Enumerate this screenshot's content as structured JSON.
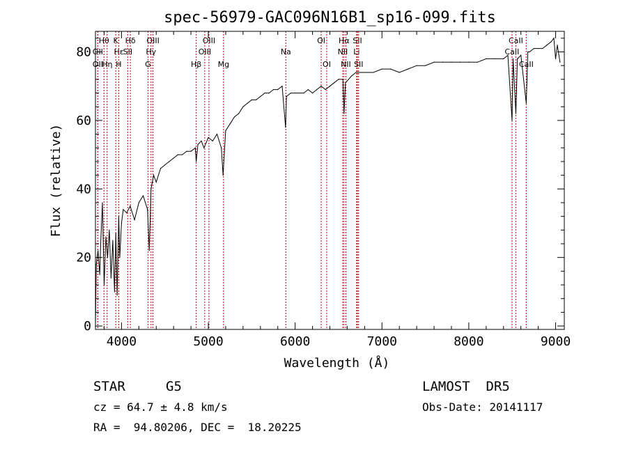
{
  "info": {
    "object_class": "STAR",
    "subclass": "G5",
    "survey": "LAMOST  DR5",
    "redshift_line": "cz = 64.7 ± 4.8 km/s",
    "obs_date": "Obs-Date: 20141117",
    "coords_line": "RA =  94.80206, DEC =  18.20225"
  },
  "colors": {
    "spectrum": "#000000",
    "line_markers": "#c00000",
    "axes": "#000000"
  },
  "chart_data": {
    "type": "line",
    "title": "spec-56979-GAC096N16B1_sp16-099.fits",
    "xlabel": "Wavelength (Å)",
    "ylabel": "Flux (relative)",
    "xlim": [
      3700,
      9100
    ],
    "ylim": [
      -1,
      86
    ],
    "x_ticks": [
      4000,
      5000,
      6000,
      7000,
      8000,
      9000
    ],
    "y_ticks": [
      0,
      20,
      40,
      60,
      80
    ],
    "grid": false,
    "series": [
      {
        "x": [
          3700,
          3710,
          3730,
          3750,
          3760,
          3780,
          3800,
          3820,
          3840,
          3860,
          3880,
          3900,
          3920,
          3935,
          3950,
          3968,
          3980,
          4000,
          4020,
          4060,
          4100,
          4150,
          4200,
          4250,
          4300,
          4320,
          4340,
          4370,
          4400,
          4450,
          4500,
          4550,
          4600,
          4650,
          4700,
          4750,
          4800,
          4850,
          4860,
          4880,
          4920,
          4950,
          5000,
          5050,
          5100,
          5150,
          5170,
          5200,
          5250,
          5300,
          5350,
          5400,
          5450,
          5500,
          5550,
          5600,
          5650,
          5700,
          5750,
          5800,
          5850,
          5890,
          5900,
          5950,
          6000,
          6050,
          6100,
          6150,
          6200,
          6250,
          6300,
          6350,
          6400,
          6450,
          6500,
          6550,
          6563,
          6580,
          6650,
          6700,
          6800,
          6900,
          7000,
          7100,
          7200,
          7300,
          7400,
          7500,
          7600,
          7700,
          7800,
          7900,
          8000,
          8100,
          8200,
          8300,
          8400,
          8450,
          8498,
          8510,
          8542,
          8560,
          8600,
          8662,
          8680,
          8700,
          8750,
          8800,
          8850,
          8900,
          8950,
          8980,
          9000,
          9020,
          9050
        ],
        "values": [
          0,
          18,
          22,
          15,
          24,
          36,
          12,
          26,
          20,
          28,
          14,
          25,
          10,
          27,
          9,
          32,
          20,
          30,
          34,
          33,
          35,
          31,
          36,
          38,
          34,
          22,
          40,
          44,
          42,
          46,
          47,
          48,
          49,
          50,
          50,
          51,
          51,
          52,
          48,
          53,
          54,
          52,
          55,
          54,
          56,
          52,
          44,
          57,
          59,
          61,
          62,
          64,
          65,
          66,
          66,
          67,
          68,
          68,
          69,
          69,
          70,
          58,
          67,
          68,
          68,
          68,
          68,
          69,
          68,
          69,
          70,
          69,
          70,
          71,
          72,
          72,
          62,
          71,
          73,
          74,
          74,
          74,
          75,
          75,
          74,
          75,
          76,
          76,
          77,
          77,
          77,
          77,
          77,
          77,
          78,
          78,
          78,
          79,
          60,
          78,
          62,
          78,
          79,
          65,
          80,
          80,
          81,
          81,
          81,
          82,
          83,
          84,
          78,
          82,
          77
        ]
      }
    ],
    "lines": [
      {
        "label": "Hθ",
        "wave": 3798,
        "row": 1
      },
      {
        "label": "OII",
        "wave": 3727,
        "row": 2
      },
      {
        "label": "OII",
        "wave": 3727,
        "row": 3
      },
      {
        "label": "K",
        "wave": 3934,
        "row": 1
      },
      {
        "label": "Hε",
        "wave": 3970,
        "row": 2
      },
      {
        "label": "Hη",
        "wave": 3835,
        "row": 3
      },
      {
        "label": "H",
        "wave": 3968,
        "row": 3
      },
      {
        "label": "Hδ",
        "wave": 4102,
        "row": 1
      },
      {
        "label": "SII",
        "wave": 4072,
        "row": 2
      },
      {
        "label": "OIII",
        "wave": 4363,
        "row": 1
      },
      {
        "label": "Hγ",
        "wave": 4340,
        "row": 2
      },
      {
        "label": "G",
        "wave": 4305,
        "row": 3
      },
      {
        "label": "OIII",
        "wave": 5007,
        "row": 1
      },
      {
        "label": "OIII",
        "wave": 4959,
        "row": 2
      },
      {
        "label": "Hβ",
        "wave": 4861,
        "row": 3
      },
      {
        "label": "Mg",
        "wave": 5175,
        "row": 3
      },
      {
        "label": "Na",
        "wave": 5893,
        "row": 2
      },
      {
        "label": "OI",
        "wave": 6300,
        "row": 1
      },
      {
        "label": "OI",
        "wave": 6364,
        "row": 3
      },
      {
        "label": "Hα",
        "wave": 6563,
        "row": 1
      },
      {
        "label": "SII",
        "wave": 6717,
        "row": 1
      },
      {
        "label": "NII",
        "wave": 6548,
        "row": 2
      },
      {
        "label": "Li",
        "wave": 6708,
        "row": 2
      },
      {
        "label": "NII",
        "wave": 6584,
        "row": 3
      },
      {
        "label": "SII",
        "wave": 6731,
        "row": 3
      },
      {
        "label": "CaII",
        "wave": 8542,
        "row": 1
      },
      {
        "label": "CaII",
        "wave": 8498,
        "row": 2
      },
      {
        "label": "CaII",
        "wave": 8662,
        "row": 3
      }
    ]
  }
}
